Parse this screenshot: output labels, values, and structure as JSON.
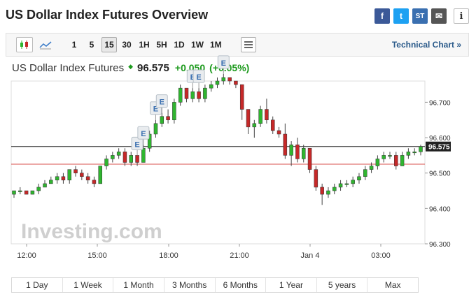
{
  "title": "US Dollar Index Futures Overview",
  "share": {
    "facebook": "f",
    "twitter": "t",
    "stocktwits": "ST",
    "email": "✉",
    "info": "i"
  },
  "toolbar": {
    "chart_type_icons": [
      "candlestick-icon",
      "line-chart-icon"
    ],
    "timeframes": [
      "1",
      "5",
      "15",
      "30",
      "1H",
      "5H",
      "1D",
      "1W",
      "1M"
    ],
    "active_timeframe": "15",
    "technical_link": "Technical Chart »"
  },
  "quote": {
    "name": "US Dollar Index Futures",
    "price": "96.575",
    "change": "+0.050",
    "change_pct": "(+0.05%)",
    "up_color": "#1d9a1d"
  },
  "chart_data": {
    "type": "candlestick",
    "x_tick_labels": [
      "12:00",
      "15:00",
      "18:00",
      "21:00",
      "Jan 4",
      "03:00"
    ],
    "y_tick_labels": [
      "96.700",
      "96.600",
      "96.500",
      "96.400",
      "96.300"
    ],
    "y_ticks": [
      96.7,
      96.6,
      96.5,
      96.4,
      96.3
    ],
    "ylim": [
      96.3,
      96.76
    ],
    "current_price_label": "96.575",
    "current_price": 96.575,
    "previous_close": 96.525,
    "up_color": "#2fb52f",
    "down_color": "#c62828",
    "event_marker_label": "E",
    "events": [
      20,
      21,
      23,
      24,
      29,
      30,
      34
    ],
    "candles": [
      [
        96.44,
        96.45,
        96.43,
        96.45
      ],
      [
        96.45,
        96.46,
        96.44,
        96.45
      ],
      [
        96.45,
        96.45,
        96.44,
        96.44
      ],
      [
        96.44,
        96.45,
        96.44,
        96.45
      ],
      [
        96.45,
        96.47,
        96.44,
        96.46
      ],
      [
        96.46,
        96.48,
        96.46,
        96.47
      ],
      [
        96.47,
        96.49,
        96.47,
        96.48
      ],
      [
        96.48,
        96.5,
        96.47,
        96.49
      ],
      [
        96.49,
        96.5,
        96.47,
        96.48
      ],
      [
        96.48,
        96.51,
        96.47,
        96.51
      ],
      [
        96.51,
        96.52,
        96.49,
        96.5
      ],
      [
        96.5,
        96.51,
        96.48,
        96.49
      ],
      [
        96.49,
        96.5,
        96.47,
        96.48
      ],
      [
        96.48,
        96.49,
        96.46,
        96.47
      ],
      [
        96.47,
        96.52,
        96.47,
        96.52
      ],
      [
        96.52,
        96.55,
        96.51,
        96.54
      ],
      [
        96.54,
        96.56,
        96.53,
        96.55
      ],
      [
        96.55,
        96.57,
        96.54,
        96.56
      ],
      [
        96.56,
        96.57,
        96.52,
        96.53
      ],
      [
        96.53,
        96.56,
        96.52,
        96.55
      ],
      [
        96.55,
        96.55,
        96.52,
        96.53
      ],
      [
        96.53,
        96.58,
        96.53,
        96.57
      ],
      [
        96.57,
        96.62,
        96.56,
        96.61
      ],
      [
        96.61,
        96.65,
        96.6,
        96.64
      ],
      [
        96.64,
        96.67,
        96.63,
        96.66
      ],
      [
        96.66,
        96.68,
        96.64,
        96.65
      ],
      [
        96.65,
        96.71,
        96.64,
        96.7
      ],
      [
        96.7,
        96.75,
        96.69,
        96.74
      ],
      [
        96.74,
        96.74,
        96.7,
        96.71
      ],
      [
        96.71,
        96.74,
        96.7,
        96.73
      ],
      [
        96.73,
        96.74,
        96.7,
        96.71
      ],
      [
        96.71,
        96.75,
        96.7,
        96.74
      ],
      [
        96.74,
        96.76,
        96.73,
        96.75
      ],
      [
        96.75,
        96.77,
        96.74,
        96.76
      ],
      [
        96.76,
        96.78,
        96.75,
        96.77
      ],
      [
        96.77,
        96.77,
        96.75,
        96.76
      ],
      [
        96.76,
        96.76,
        96.74,
        96.75
      ],
      [
        96.75,
        96.75,
        96.65,
        96.68
      ],
      [
        96.68,
        96.68,
        96.61,
        96.63
      ],
      [
        96.63,
        96.65,
        96.6,
        96.64
      ],
      [
        96.64,
        96.69,
        96.63,
        96.68
      ],
      [
        96.68,
        96.71,
        96.64,
        96.65
      ],
      [
        96.65,
        96.66,
        96.61,
        96.62
      ],
      [
        96.62,
        96.63,
        96.6,
        96.61
      ],
      [
        96.61,
        96.64,
        96.54,
        96.55
      ],
      [
        96.55,
        96.59,
        96.52,
        96.58
      ],
      [
        96.58,
        96.6,
        96.53,
        96.54
      ],
      [
        96.54,
        96.58,
        96.53,
        96.57
      ],
      [
        96.57,
        96.57,
        96.5,
        96.51
      ],
      [
        96.51,
        96.52,
        96.45,
        96.46
      ],
      [
        96.46,
        96.47,
        96.41,
        96.44
      ],
      [
        96.44,
        96.46,
        96.43,
        96.45
      ],
      [
        96.45,
        96.47,
        96.44,
        96.46
      ],
      [
        96.46,
        96.48,
        96.45,
        96.47
      ],
      [
        96.47,
        96.48,
        96.46,
        96.47
      ],
      [
        96.47,
        96.49,
        96.46,
        96.48
      ],
      [
        96.48,
        96.5,
        96.47,
        96.49
      ],
      [
        96.49,
        96.52,
        96.48,
        96.51
      ],
      [
        96.51,
        96.53,
        96.5,
        96.52
      ],
      [
        96.52,
        96.55,
        96.51,
        96.54
      ],
      [
        96.54,
        96.56,
        96.53,
        96.55
      ],
      [
        96.55,
        96.56,
        96.54,
        96.55
      ],
      [
        96.55,
        96.56,
        96.51,
        96.52
      ],
      [
        96.52,
        96.56,
        96.52,
        96.55
      ],
      [
        96.55,
        96.57,
        96.54,
        96.56
      ],
      [
        96.56,
        96.57,
        96.55,
        96.56
      ],
      [
        96.56,
        96.58,
        96.55,
        96.575
      ]
    ]
  },
  "watermark": "Investing.com",
  "ranges": [
    "1 Day",
    "1 Week",
    "1 Month",
    "3 Months",
    "6 Months",
    "1 Year",
    "5 years",
    "Max"
  ]
}
